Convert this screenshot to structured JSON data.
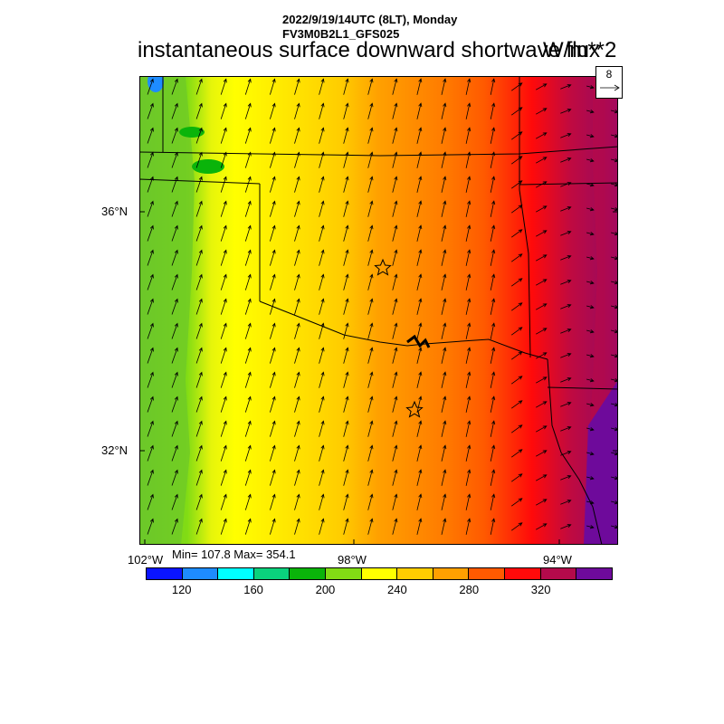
{
  "header": {
    "date_line": "2022/9/19/14UTC (8LT), Monday",
    "model_line": "FV3M0B2L1_GFS025"
  },
  "title": "instantaneous surface downward shortwave flux",
  "units": "W/m**2",
  "map": {
    "lat_labels": [
      "36°N",
      "32°N"
    ],
    "lon_labels": [
      "102°W",
      "98°W",
      "94°W"
    ],
    "markers": [
      "star",
      "star"
    ]
  },
  "vector_reference": {
    "magnitude": "8"
  },
  "stats": {
    "text": "Min= 107.8 Max= 354.1",
    "min": 107.8,
    "max": 354.1
  },
  "colorbar": {
    "colors": [
      "#0a14ff",
      "#1e8cff",
      "#00ffff",
      "#0ad27d",
      "#0ab40a",
      "#82dc14",
      "#ffff00",
      "#ffcd00",
      "#ffa000",
      "#ff5a00",
      "#ff0a0a",
      "#b40a4b",
      "#6e0a9b"
    ],
    "labels": [
      "120",
      "160",
      "200",
      "240",
      "280",
      "320"
    ]
  },
  "chart_data": {
    "type": "heatmap",
    "title": "instantaneous surface downward shortwave flux",
    "units": "W/m**2",
    "levels": [
      120,
      140,
      160,
      180,
      200,
      220,
      240,
      260,
      280,
      300,
      320,
      340
    ],
    "min": 107.8,
    "max": 354.1,
    "pattern": "flux increases from west (about 200) to east (about 340+)"
  }
}
